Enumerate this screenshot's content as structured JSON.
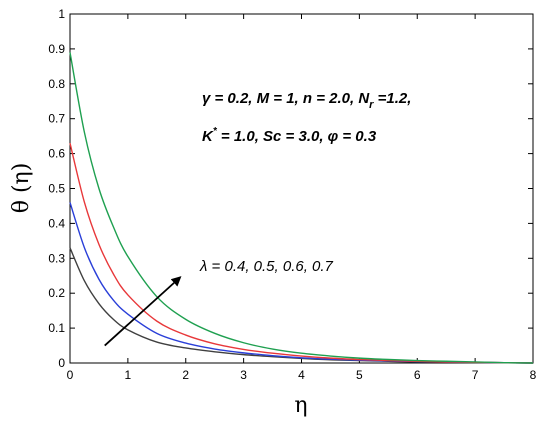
{
  "chart_data": {
    "type": "line",
    "xlabel": "η",
    "ylabel": "θ (η)",
    "xlim": [
      0,
      8
    ],
    "ylim": [
      0,
      1
    ],
    "xticks": [
      "0",
      "1",
      "2",
      "3",
      "4",
      "5",
      "6",
      "7",
      "8"
    ],
    "yticks": [
      "0",
      "0.1",
      "0.2",
      "0.3",
      "0.4",
      "0.5",
      "0.6",
      "0.7",
      "0.8",
      "0.9",
      "1"
    ],
    "grid": false,
    "series": [
      {
        "color": "#404040",
        "x": [
          0,
          0.25,
          0.5,
          0.75,
          1,
          1.5,
          2,
          2.5,
          3,
          3.5,
          4,
          4.5,
          5,
          5.5,
          6,
          6.5,
          7,
          7.5,
          8
        ],
        "values": [
          0.33,
          0.235,
          0.17,
          0.125,
          0.095,
          0.06,
          0.043,
          0.032,
          0.024,
          0.018,
          0.013,
          0.009,
          0.007,
          0.005,
          0.003,
          0.002,
          0.001,
          0.0005,
          0.0
        ]
      },
      {
        "color": "#2a3fd8",
        "x": [
          0,
          0.25,
          0.5,
          0.75,
          1,
          1.5,
          2,
          2.5,
          3,
          3.5,
          4,
          4.5,
          5,
          5.5,
          6,
          6.5,
          7,
          7.5,
          8
        ],
        "values": [
          0.46,
          0.33,
          0.24,
          0.18,
          0.14,
          0.085,
          0.057,
          0.04,
          0.029,
          0.021,
          0.015,
          0.011,
          0.008,
          0.006,
          0.004,
          0.003,
          0.002,
          0.001,
          0.0
        ]
      },
      {
        "color": "#e8383a",
        "x": [
          0,
          0.25,
          0.5,
          0.75,
          1,
          1.5,
          2,
          2.5,
          3,
          3.5,
          4,
          4.5,
          5,
          5.5,
          6,
          6.5,
          7,
          7.5,
          8
        ],
        "values": [
          0.63,
          0.46,
          0.34,
          0.255,
          0.195,
          0.12,
          0.08,
          0.055,
          0.039,
          0.028,
          0.02,
          0.014,
          0.01,
          0.007,
          0.005,
          0.003,
          0.002,
          0.001,
          0.0
        ]
      },
      {
        "color": "#1fa050",
        "x": [
          0,
          0.25,
          0.5,
          0.75,
          1,
          1.5,
          2,
          2.5,
          3,
          3.5,
          4,
          4.5,
          5,
          5.5,
          6,
          6.5,
          7,
          7.5,
          8
        ],
        "values": [
          0.89,
          0.66,
          0.5,
          0.39,
          0.305,
          0.19,
          0.125,
          0.085,
          0.058,
          0.04,
          0.028,
          0.02,
          0.014,
          0.01,
          0.007,
          0.005,
          0.003,
          0.001,
          0.0
        ]
      }
    ],
    "annotations": {
      "params_line1": "γ = 0.2,  M = 1,  n = 2.0, N_r =1.2,",
      "params_line2": "K* = 1.0,  Sc = 3.0,  φ = 0.3",
      "lambda_label": "λ = 0.4, 0.5, 0.6, 0.7",
      "arrow_from": [
        0.6,
        0.05
      ],
      "arrow_to": [
        1.9,
        0.245
      ]
    }
  }
}
